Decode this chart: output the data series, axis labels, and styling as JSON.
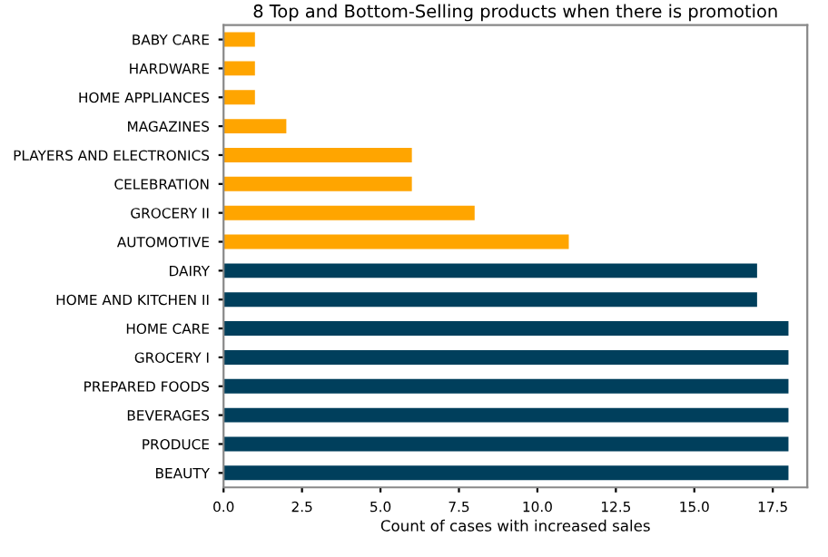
{
  "chart_data": {
    "type": "bar",
    "orientation": "horizontal",
    "title": "8 Top and Bottom-Selling products when there is promotion",
    "xlabel": "Count of cases with increased sales",
    "categories": [
      "BABY CARE",
      "HARDWARE",
      "HOME APPLIANCES",
      "MAGAZINES",
      "PLAYERS AND ELECTRONICS",
      "CELEBRATION",
      "GROCERY II",
      "AUTOMOTIVE",
      "DAIRY",
      "HOME AND KITCHEN II",
      "HOME CARE",
      "GROCERY I",
      "PREPARED FOODS",
      "BEVERAGES",
      "PRODUCE",
      "BEAUTY"
    ],
    "values": [
      1,
      1,
      1,
      2,
      6,
      6,
      8,
      11,
      17,
      17,
      18,
      18,
      18,
      18,
      18,
      18
    ],
    "colors": [
      "#ffa500",
      "#ffa500",
      "#ffa500",
      "#ffa500",
      "#ffa500",
      "#ffa500",
      "#ffa500",
      "#ffa500",
      "#003f5c",
      "#003f5c",
      "#003f5c",
      "#003f5c",
      "#003f5c",
      "#003f5c",
      "#003f5c",
      "#003f5c"
    ],
    "xlim": [
      0,
      18.6
    ],
    "xticks": [
      {
        "value": 0,
        "label": "0.0"
      },
      {
        "value": 2.5,
        "label": "2.5"
      },
      {
        "value": 5,
        "label": "5.0"
      },
      {
        "value": 7.5,
        "label": "7.5"
      },
      {
        "value": 10,
        "label": "10.0"
      },
      {
        "value": 12.5,
        "label": "12.5"
      },
      {
        "value": 15,
        "label": "15.0"
      },
      {
        "value": 17.5,
        "label": "17.5"
      }
    ]
  }
}
